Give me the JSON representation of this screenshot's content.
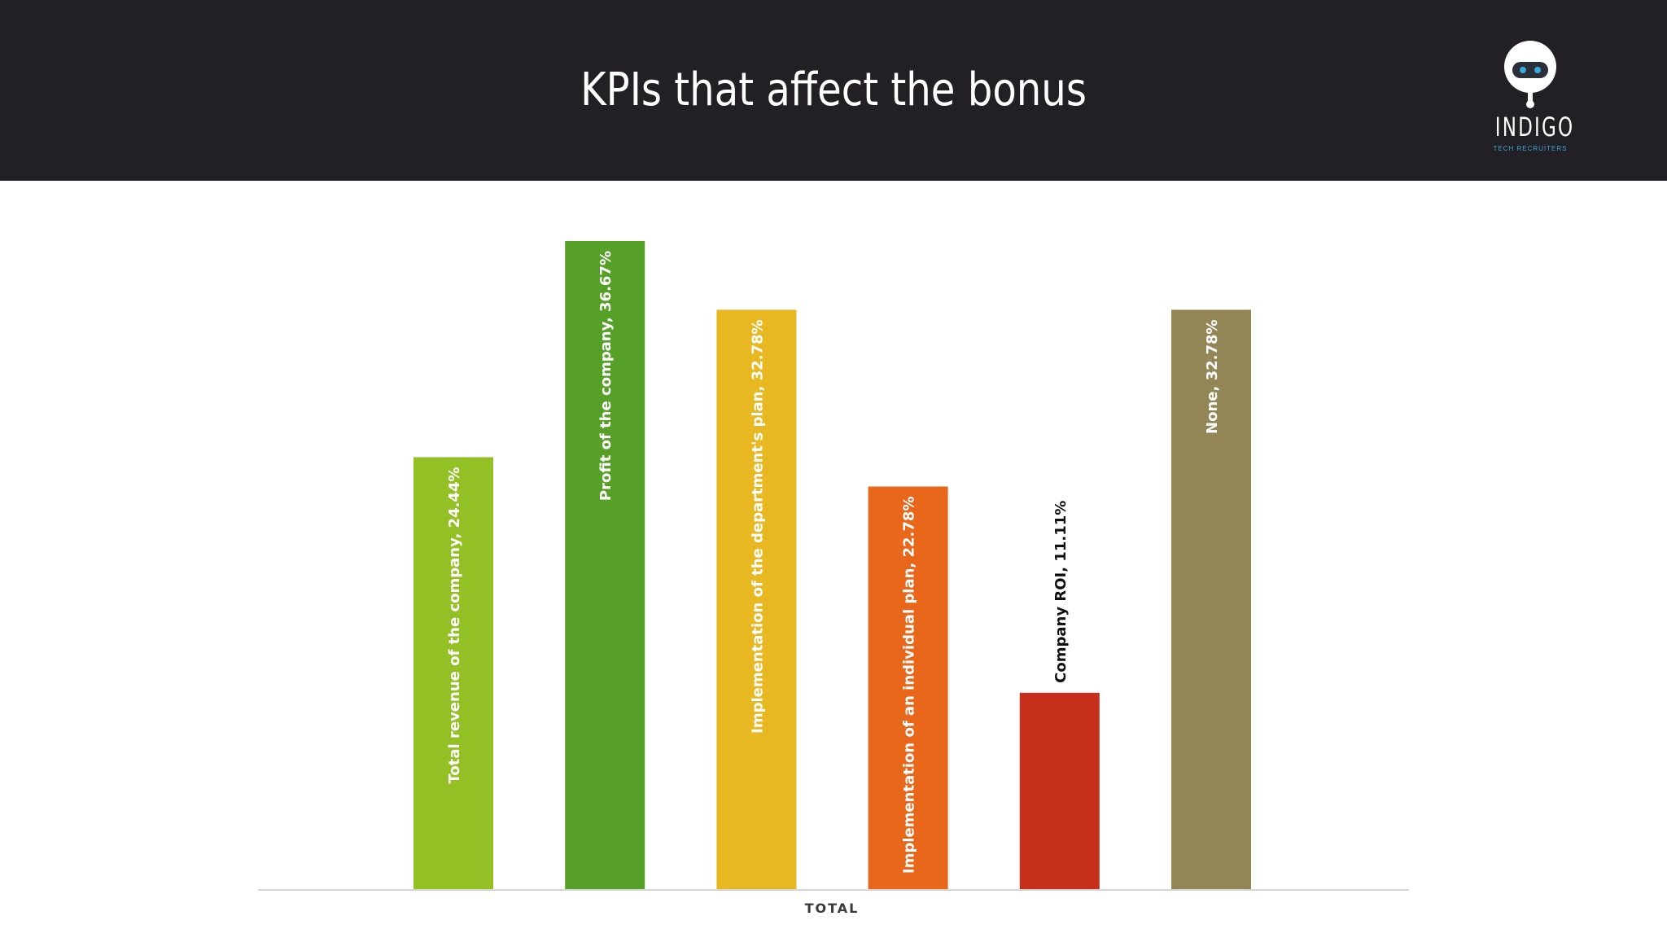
{
  "header": {
    "title": "KPIs that affect the bonus",
    "logo": {
      "icon": "robot-head-icon",
      "wordmark": "INDIGO",
      "tagline": "TECH RECRUITERS"
    }
  },
  "chart_data": {
    "type": "bar",
    "xlabel": "TOTAL",
    "ylabel": "",
    "ylim": [
      0,
      36.67
    ],
    "grid": false,
    "legend": "none",
    "categories": [
      "Total revenue of the company",
      "Profit of the company",
      "Implementation of the department's plan",
      "Implementation of an individual plan",
      "Company ROI",
      "None"
    ],
    "values": [
      24.44,
      36.67,
      32.78,
      22.78,
      11.11,
      32.78
    ],
    "data_labels": [
      "Total revenue of the company, 24.44%",
      "Profit of the company, 36.67%",
      "Implementation of the department's plan, 32.78%",
      "Implementation of an individual plan, 22.78%",
      "Company ROI, 11.11%",
      "None, 32.78%"
    ],
    "colors": [
      "#93c125",
      "#57a027",
      "#e8b823",
      "#e8671a",
      "#c52f1b",
      "#938656"
    ],
    "label_colors": [
      "#ffffff",
      "#ffffff",
      "#ffffff",
      "#ffffff",
      "#111111",
      "#ffffff"
    ]
  }
}
